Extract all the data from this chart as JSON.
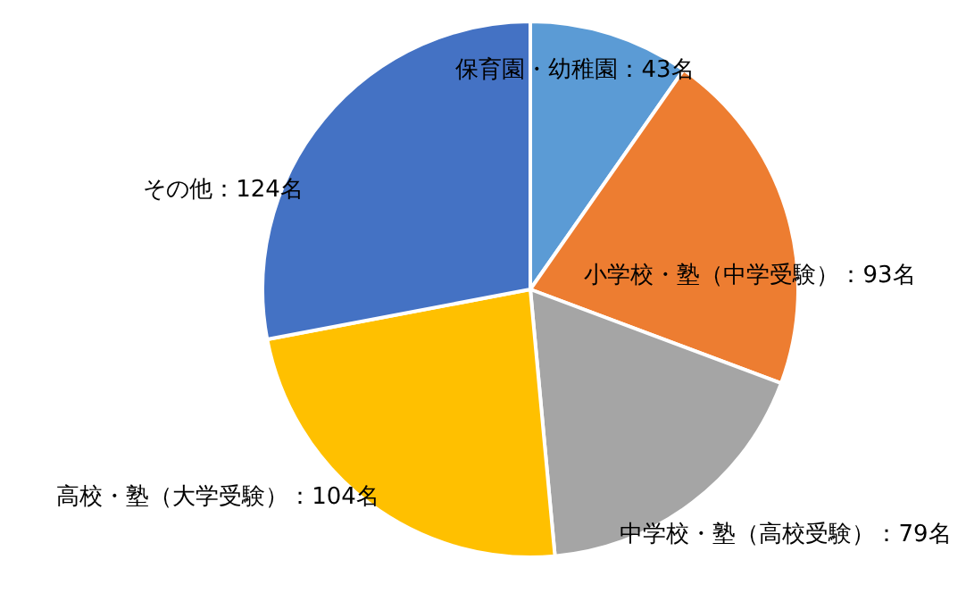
{
  "chart_data": {
    "type": "pie",
    "categories": [
      "保育園・幼稚園",
      "小学校・塾（中学受験）",
      "中学校・塾（高校受験）",
      "高校・塾（大学受験）",
      "その他"
    ],
    "values": [
      43,
      93,
      79,
      104,
      124
    ],
    "colors": [
      "#5b9bd5",
      "#ed7d31",
      "#a5a5a5",
      "#ffc000",
      "#4472c4"
    ],
    "value_labels": [
      "：43名",
      "：93名",
      "：79名",
      "：104名",
      "：124名"
    ]
  }
}
